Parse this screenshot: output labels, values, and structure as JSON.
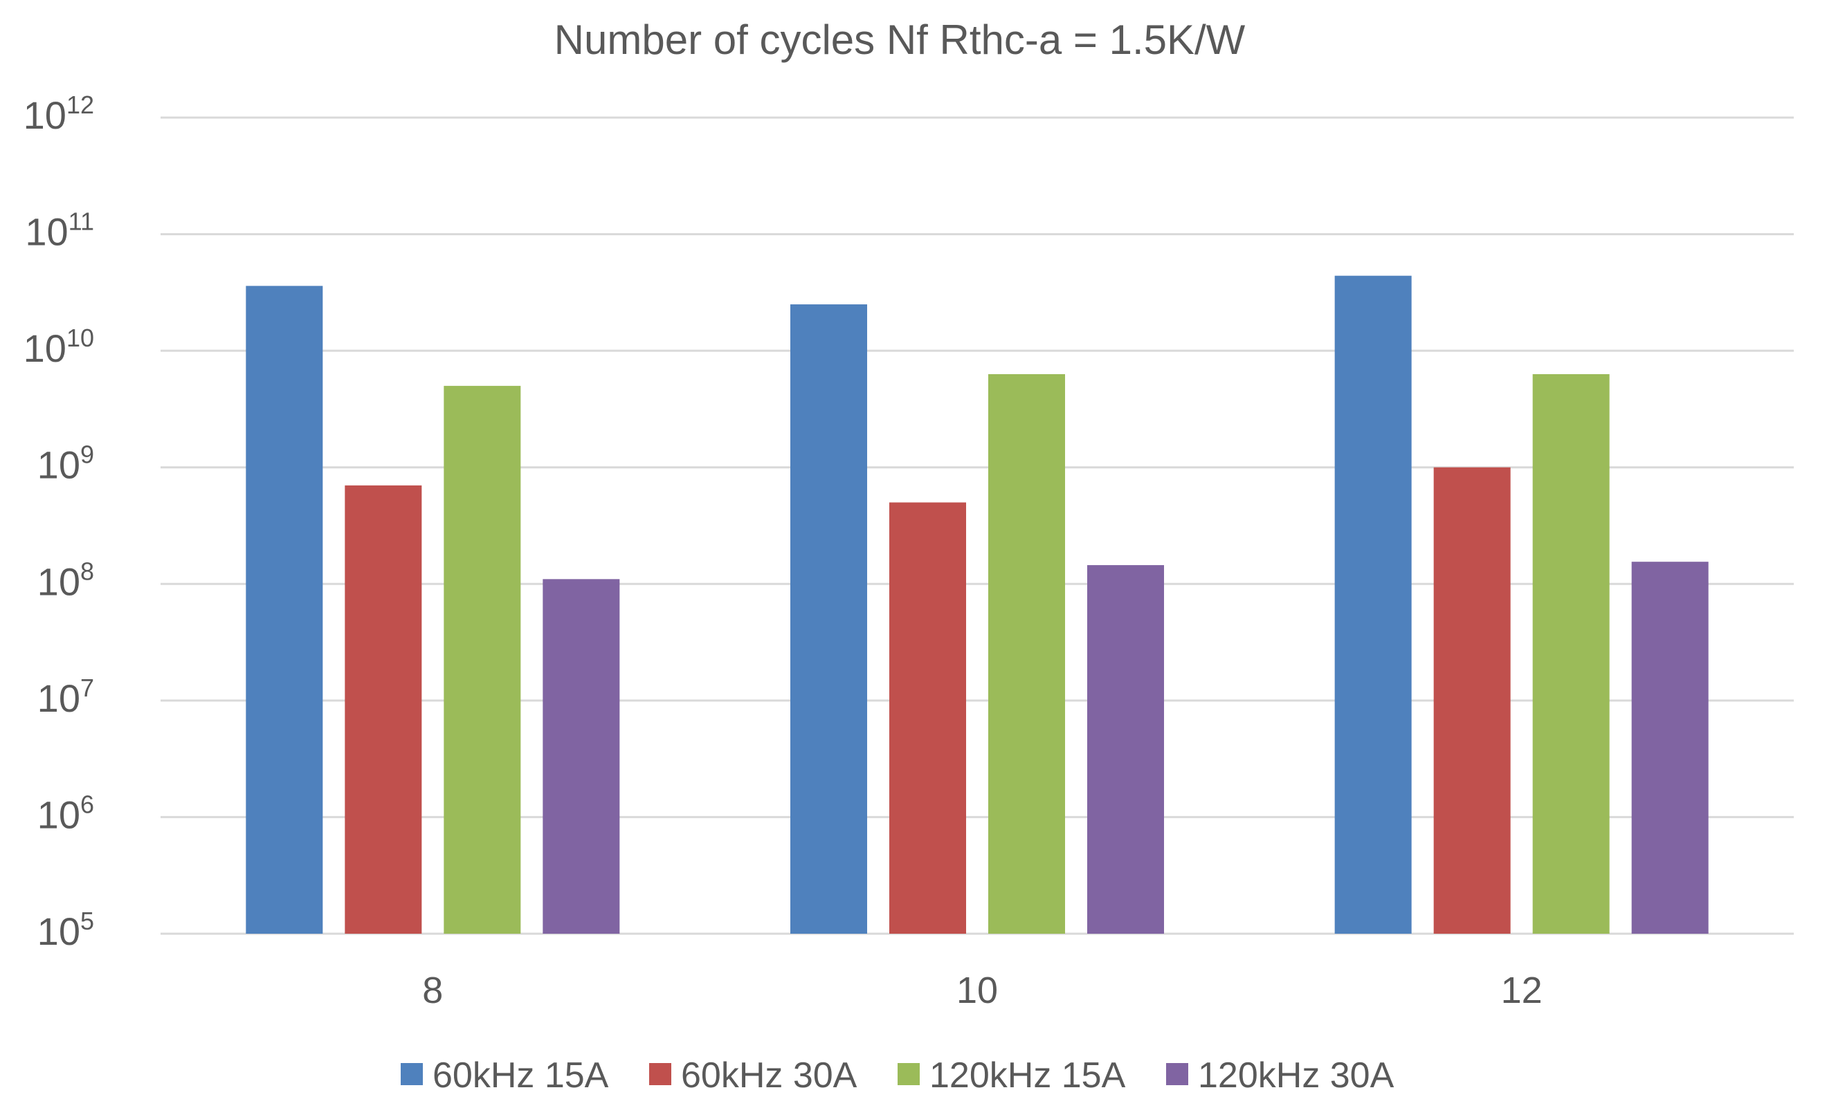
{
  "chart_data": {
    "type": "bar",
    "title": "Number of cycles Nf  Rthc-a = 1.5K/W",
    "xlabel": "",
    "ylabel": "",
    "yscale": "log",
    "ylim": [
      100000,
      1000000000000
    ],
    "y_ticks": [
      {
        "base": "10",
        "exp": "5",
        "value": 100000
      },
      {
        "base": "10",
        "exp": "6",
        "value": 1000000
      },
      {
        "base": "10",
        "exp": "7",
        "value": 10000000
      },
      {
        "base": "10",
        "exp": "8",
        "value": 100000000
      },
      {
        "base": "10",
        "exp": "9",
        "value": 1000000000
      },
      {
        "base": "10",
        "exp": "10",
        "value": 10000000000
      },
      {
        "base": "10",
        "exp": "11",
        "value": 100000000000
      },
      {
        "base": "10",
        "exp": "12",
        "value": 1000000000000
      }
    ],
    "categories": [
      "8",
      "10",
      "12"
    ],
    "series": [
      {
        "name": "60kHz 15A",
        "color": "#4F81BD",
        "values": [
          36000000000,
          25000000000,
          44000000000
        ]
      },
      {
        "name": "60kHz 30A",
        "color": "#C0504D",
        "values": [
          700000000,
          500000000,
          1000000000
        ]
      },
      {
        "name": "120kHz 15A",
        "color": "#9BBB59",
        "values": [
          5000000000,
          6300000000,
          6300000000
        ]
      },
      {
        "name": "120kHz 30A",
        "color": "#8064A2",
        "values": [
          110000000,
          145000000,
          155000000
        ]
      }
    ],
    "grid": true,
    "legend_position": "bottom"
  }
}
